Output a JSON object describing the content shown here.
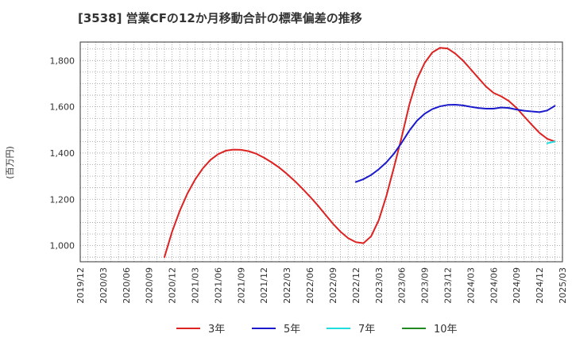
{
  "chart_data": {
    "type": "line",
    "title": "[3538]  営業CFの12か月移動合計の標準偏差の推移",
    "ylabel": "(百万円)",
    "xlabel": "",
    "ylim": [
      930,
      1880
    ],
    "yticks": [
      1000,
      1200,
      1400,
      1600,
      1800
    ],
    "ytick_labels": [
      "1,000",
      "1,200",
      "1,400",
      "1,600",
      "1,800"
    ],
    "xlim": [
      "2019-12",
      "2025-03"
    ],
    "xtick_labels": [
      "2019/12",
      "2020/03",
      "2020/06",
      "2020/09",
      "2020/12",
      "2021/03",
      "2021/06",
      "2021/09",
      "2021/12",
      "2022/03",
      "2022/06",
      "2022/09",
      "2022/12",
      "2023/03",
      "2023/06",
      "2023/09",
      "2023/12",
      "2024/03",
      "2024/06",
      "2024/09",
      "2024/12",
      "2025/03"
    ],
    "grid": true,
    "legend_position": "bottom",
    "series": [
      {
        "name": "3年",
        "color": "#dd2222",
        "points": [
          [
            "2020-11",
            950
          ],
          [
            "2020-12",
            1060
          ],
          [
            "2021-01",
            1150
          ],
          [
            "2021-02",
            1225
          ],
          [
            "2021-03",
            1285
          ],
          [
            "2021-04",
            1333
          ],
          [
            "2021-05",
            1370
          ],
          [
            "2021-06",
            1395
          ],
          [
            "2021-07",
            1410
          ],
          [
            "2021-08",
            1415
          ],
          [
            "2021-09",
            1414
          ],
          [
            "2021-10",
            1408
          ],
          [
            "2021-11",
            1397
          ],
          [
            "2021-12",
            1380
          ],
          [
            "2022-01",
            1360
          ],
          [
            "2022-02",
            1337
          ],
          [
            "2022-03",
            1310
          ],
          [
            "2022-04",
            1280
          ],
          [
            "2022-05",
            1247
          ],
          [
            "2022-06",
            1212
          ],
          [
            "2022-07",
            1175
          ],
          [
            "2022-08",
            1135
          ],
          [
            "2022-09",
            1095
          ],
          [
            "2022-10",
            1060
          ],
          [
            "2022-11",
            1032
          ],
          [
            "2022-12",
            1015
          ],
          [
            "2023-01",
            1010
          ],
          [
            "2023-02",
            1040
          ],
          [
            "2023-03",
            1110
          ],
          [
            "2023-04",
            1215
          ],
          [
            "2023-05",
            1340
          ],
          [
            "2023-06",
            1470
          ],
          [
            "2023-07",
            1610
          ],
          [
            "2023-08",
            1720
          ],
          [
            "2023-09",
            1790
          ],
          [
            "2023-10",
            1835
          ],
          [
            "2023-11",
            1855
          ],
          [
            "2023-12",
            1852
          ],
          [
            "2024-01",
            1830
          ],
          [
            "2024-02",
            1800
          ],
          [
            "2024-03",
            1763
          ],
          [
            "2024-04",
            1725
          ],
          [
            "2024-05",
            1688
          ],
          [
            "2024-06",
            1660
          ],
          [
            "2024-07",
            1645
          ],
          [
            "2024-08",
            1625
          ],
          [
            "2024-09",
            1595
          ],
          [
            "2024-10",
            1558
          ],
          [
            "2024-11",
            1522
          ],
          [
            "2024-12",
            1487
          ],
          [
            "2025-01",
            1462
          ],
          [
            "2025-02",
            1450
          ]
        ]
      },
      {
        "name": "5年",
        "color": "#1a1acc",
        "points": [
          [
            "2022-12",
            1275
          ],
          [
            "2023-01",
            1287
          ],
          [
            "2023-02",
            1305
          ],
          [
            "2023-03",
            1330
          ],
          [
            "2023-04",
            1360
          ],
          [
            "2023-05",
            1398
          ],
          [
            "2023-06",
            1445
          ],
          [
            "2023-07",
            1497
          ],
          [
            "2023-08",
            1540
          ],
          [
            "2023-09",
            1570
          ],
          [
            "2023-10",
            1590
          ],
          [
            "2023-11",
            1602
          ],
          [
            "2023-12",
            1608
          ],
          [
            "2024-01",
            1609
          ],
          [
            "2024-02",
            1606
          ],
          [
            "2024-03",
            1600
          ],
          [
            "2024-04",
            1595
          ],
          [
            "2024-05",
            1592
          ],
          [
            "2024-06",
            1592
          ],
          [
            "2024-07",
            1597
          ],
          [
            "2024-08",
            1595
          ],
          [
            "2024-09",
            1588
          ],
          [
            "2024-10",
            1583
          ],
          [
            "2024-11",
            1580
          ],
          [
            "2024-12",
            1577
          ],
          [
            "2025-01",
            1584
          ],
          [
            "2025-02",
            1604
          ]
        ]
      },
      {
        "name": "7年",
        "color": "#22dddd",
        "points": [
          [
            "2025-01",
            1442
          ],
          [
            "2025-02",
            1450
          ]
        ]
      },
      {
        "name": "10年",
        "color": "#228822",
        "points": []
      }
    ]
  }
}
